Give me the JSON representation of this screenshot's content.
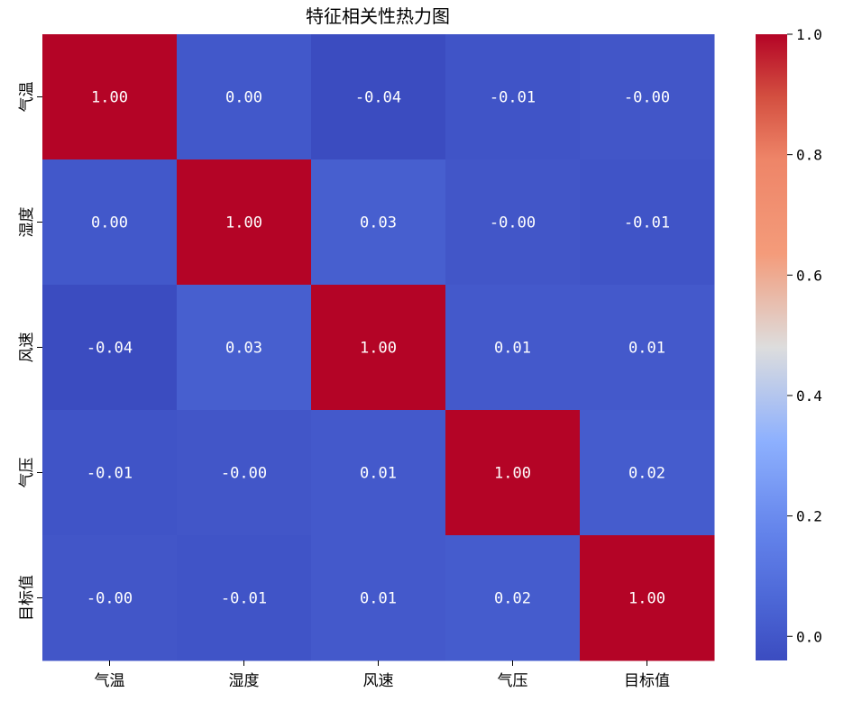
{
  "chart_data": {
    "type": "heatmap",
    "title": "特征相关性热力图",
    "rows": [
      "气温",
      "湿度",
      "风速",
      "气压",
      "目标值"
    ],
    "columns": [
      "气温",
      "湿度",
      "风速",
      "气压",
      "目标值"
    ],
    "values": [
      [
        1.0,
        0.003,
        -0.04,
        -0.01,
        -0.002
      ],
      [
        0.003,
        1.0,
        0.03,
        -0.002,
        -0.01
      ],
      [
        -0.04,
        0.03,
        1.0,
        0.01,
        0.01
      ],
      [
        -0.01,
        -0.002,
        0.01,
        1.0,
        0.02
      ],
      [
        -0.002,
        -0.01,
        0.01,
        0.02,
        1.0
      ]
    ],
    "cell_labels": [
      [
        "1.00",
        "0.00",
        "-0.04",
        "-0.01",
        "-0.00"
      ],
      [
        "0.00",
        "1.00",
        "0.03",
        "-0.00",
        "-0.01"
      ],
      [
        "-0.04",
        "0.03",
        "1.00",
        "0.01",
        "0.01"
      ],
      [
        "-0.01",
        "-0.00",
        "0.01",
        "1.00",
        "0.02"
      ],
      [
        "-0.00",
        "-0.01",
        "0.01",
        "0.02",
        "1.00"
      ]
    ],
    "colormap": "coolwarm",
    "color_range": [
      -0.04,
      1.0
    ],
    "colorbar": {
      "ticks": [
        0.0,
        0.2,
        0.4,
        0.6,
        0.8,
        1.0
      ],
      "tick_labels": [
        "0.0",
        "0.2",
        "0.4",
        "0.6",
        "0.8",
        "1.0"
      ]
    },
    "colors": {
      "low": "#3b4cc0",
      "mid": "#dddddd",
      "high": "#b40426"
    }
  }
}
